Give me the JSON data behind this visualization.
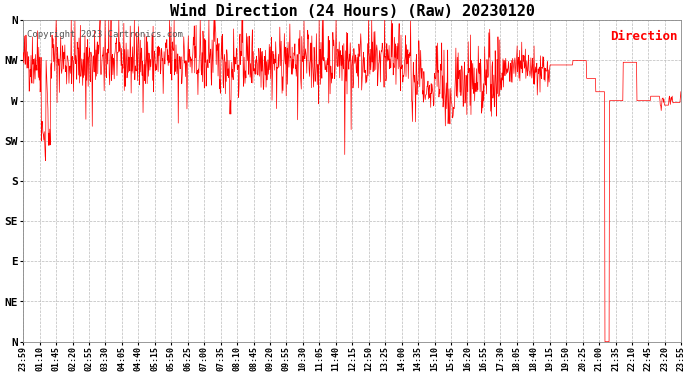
{
  "title": "Wind Direction (24 Hours) (Raw) 20230120",
  "copyright_text": "Copyright 2023 Cartronics.com",
  "legend_label": "Direction",
  "legend_color": "#ff0000",
  "line_color": "#ff0000",
  "background_color": "#ffffff",
  "grid_color": "#bbbbbb",
  "title_fontsize": 11,
  "ytick_labels": [
    "N",
    "NW",
    "W",
    "SW",
    "S",
    "SE",
    "E",
    "NE",
    "N"
  ],
  "ytick_values": [
    360,
    315,
    270,
    225,
    180,
    135,
    90,
    45,
    0
  ],
  "ylim": [
    0,
    360
  ],
  "xtick_labels": [
    "23:59",
    "01:10",
    "01:45",
    "02:20",
    "02:55",
    "03:30",
    "04:05",
    "04:40",
    "05:15",
    "05:50",
    "06:25",
    "07:00",
    "07:35",
    "08:10",
    "08:45",
    "09:20",
    "09:55",
    "10:30",
    "11:05",
    "11:40",
    "12:15",
    "12:50",
    "13:25",
    "14:00",
    "14:35",
    "15:10",
    "15:45",
    "16:20",
    "16:55",
    "17:30",
    "18:05",
    "18:40",
    "19:15",
    "19:50",
    "20:25",
    "21:00",
    "21:35",
    "22:10",
    "22:45",
    "23:20",
    "23:55"
  ],
  "num_points": 1440,
  "seed": 42
}
